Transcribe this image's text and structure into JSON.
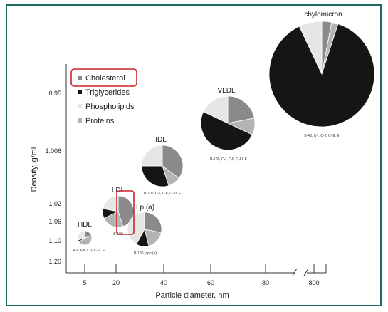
{
  "chart_data": {
    "type": "bubble-pie",
    "xlabel": "Particle diameter, nm",
    "ylabel": "Density, g/ml",
    "x_ticks": [
      "5",
      "20",
      "40",
      "60",
      "80",
      "800"
    ],
    "y_ticks": [
      "0.95",
      "1.006",
      "1.02",
      "1.06",
      "1.10",
      "1.20"
    ],
    "legend": {
      "placement": "top-left",
      "items": [
        {
          "name": "Cholesterol",
          "color": "#8a8a8a"
        },
        {
          "name": "Triglycerides",
          "color": "#151515"
        },
        {
          "name": "Phospholipids",
          "color": "#e6e6e6"
        },
        {
          "name": "Proteins",
          "color": "#b3b3b3"
        }
      ]
    },
    "highlight_color": "#c8262c",
    "particles": [
      {
        "name": "chylomicron",
        "apolipoproteins": "B-48, C-I, C-II, C-III, E",
        "composition": {
          "Cholesterol": 3,
          "Triglycerides": 88,
          "Phospholipids": 7,
          "Proteins": 2
        }
      },
      {
        "name": "VLDL",
        "apolipoproteins": "B-100, C-I, C-II, C-III, E",
        "composition": {
          "Cholesterol": 22,
          "Triglycerides": 50,
          "Phospholipids": 18,
          "Proteins": 10
        }
      },
      {
        "name": "IDL",
        "apolipoproteins": "B-100, C-I, C-II, C-III, E",
        "composition": {
          "Cholesterol": 35,
          "Triglycerides": 30,
          "Phospholipids": 25,
          "Proteins": 10
        }
      },
      {
        "name": "LDL",
        "apolipoproteins": "B-100",
        "composition": {
          "Cholesterol": 45,
          "Triglycerides": 10,
          "Phospholipids": 22,
          "Proteins": 23
        }
      },
      {
        "name": "Lp (a)",
        "apolipoproteins": "B-100, apo (a)",
        "composition": {
          "Cholesterol": 28,
          "Triglycerides": 12,
          "Phospholipids": 42,
          "Proteins": 18
        }
      },
      {
        "name": "HDL",
        "apolipoproteins": "A-I, A-II, C-I, C-III, E",
        "composition": {
          "Cholesterol": 20,
          "Triglycerides": 5,
          "Phospholipids": 30,
          "Proteins": 45
        }
      }
    ]
  }
}
